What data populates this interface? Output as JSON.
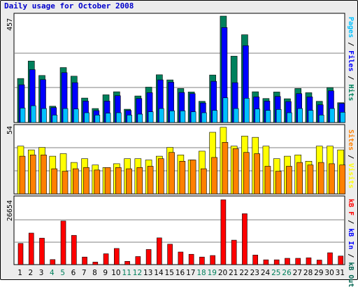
{
  "title": "Daily usage for October 2008",
  "colors": {
    "hits": "#00805c",
    "files": "#0000ff",
    "pages": "#00c0ff",
    "visits": "#ffff00",
    "sites": "#ff8000",
    "kb_in": "#0000ff",
    "kb_out": "#006450",
    "kb_f": "#ff0000",
    "weekend_label": "#00805c",
    "weekday_label": "#000000"
  },
  "chart_data": [
    {
      "type": "bar",
      "panel": "top",
      "ymax_label": "457",
      "ylim": [
        0,
        457
      ],
      "right_label": [
        {
          "text": "Pages",
          "color": "#00c0ff"
        },
        {
          "text": " / ",
          "color": "#000000"
        },
        {
          "text": "Files",
          "color": "#0000ff"
        },
        {
          "text": " / ",
          "color": "#000000"
        },
        {
          "text": "Hits",
          "color": "#00805c"
        }
      ],
      "series": [
        {
          "name": "Hits",
          "values": [
            189,
            264,
            202,
            70,
            236,
            199,
            105,
            60,
            119,
            132,
            57,
            114,
            152,
            205,
            183,
            146,
            131,
            91,
            204,
            457,
            285,
            377,
            132,
            103,
            131,
            102,
            146,
            128,
            91,
            150,
            85
          ]
        },
        {
          "name": "Files",
          "values": [
            162,
            227,
            184,
            64,
            214,
            171,
            92,
            51,
            92,
            115,
            52,
            103,
            128,
            183,
            173,
            129,
            124,
            84,
            177,
            408,
            171,
            330,
            110,
            92,
            112,
            90,
            124,
            110,
            76,
            136,
            82
          ]
        },
        {
          "name": "Pages",
          "values": [
            62,
            72,
            60,
            32,
            60,
            58,
            42,
            32,
            40,
            42,
            32,
            36,
            46,
            60,
            50,
            50,
            46,
            42,
            52,
            106,
            60,
            104,
            58,
            52,
            56,
            42,
            60,
            52,
            32,
            60,
            44
          ]
        }
      ]
    },
    {
      "type": "bar",
      "panel": "middle",
      "ymax_label": "54",
      "ylim": [
        0,
        54
      ],
      "right_label": [
        {
          "text": "Sites",
          "color": "#ff8000"
        },
        {
          "text": " / ",
          "color": "#000000"
        },
        {
          "text": "Visits",
          "color": "#ffff00"
        }
      ],
      "series": [
        {
          "name": "Visits",
          "values": [
            38,
            35,
            37,
            30,
            32,
            25,
            28,
            23,
            21,
            24,
            28,
            28,
            27,
            30,
            37,
            31,
            27,
            34,
            49,
            53,
            38,
            46,
            45,
            38,
            28,
            30,
            31,
            26,
            38,
            38,
            35
          ]
        },
        {
          "name": "Sites",
          "values": [
            30,
            31,
            31,
            20,
            18,
            20,
            21,
            19,
            21,
            21,
            20,
            21,
            22,
            28,
            33,
            26,
            27,
            20,
            29,
            41,
            36,
            33,
            32,
            22,
            18,
            22,
            25,
            23,
            25,
            24,
            23
          ]
        }
      ]
    },
    {
      "type": "bar",
      "panel": "bottom",
      "ymax_label": "26654",
      "ylim": [
        0,
        26654
      ],
      "right_label": [
        {
          "text": "kB F",
          "color": "#ff0000"
        },
        {
          "text": " / ",
          "color": "#000000"
        },
        {
          "text": "kB In",
          "color": "#0000ff"
        },
        {
          "text": " / ",
          "color": "#000000"
        },
        {
          "text": "kB Out",
          "color": "#006450"
        }
      ],
      "series": [
        {
          "name": "kB F",
          "values": [
            8400,
            12500,
            10500,
            2000,
            17300,
            11600,
            3000,
            1000,
            4300,
            6400,
            1300,
            3200,
            6000,
            10600,
            8100,
            5000,
            4100,
            3000,
            3600,
            25700,
            9700,
            20200,
            3800,
            1900,
            1900,
            2500,
            2500,
            2700,
            1800,
            4700,
            3400
          ]
        }
      ],
      "categories": [
        "1",
        "2",
        "3",
        "4",
        "5",
        "6",
        "7",
        "8",
        "9",
        "10",
        "11",
        "12",
        "13",
        "14",
        "15",
        "16",
        "17",
        "18",
        "19",
        "20",
        "21",
        "22",
        "23",
        "24",
        "25",
        "26",
        "27",
        "28",
        "29",
        "30",
        "31"
      ],
      "weekend_days": [
        4,
        5,
        11,
        12,
        18,
        19,
        25,
        26
      ]
    }
  ]
}
